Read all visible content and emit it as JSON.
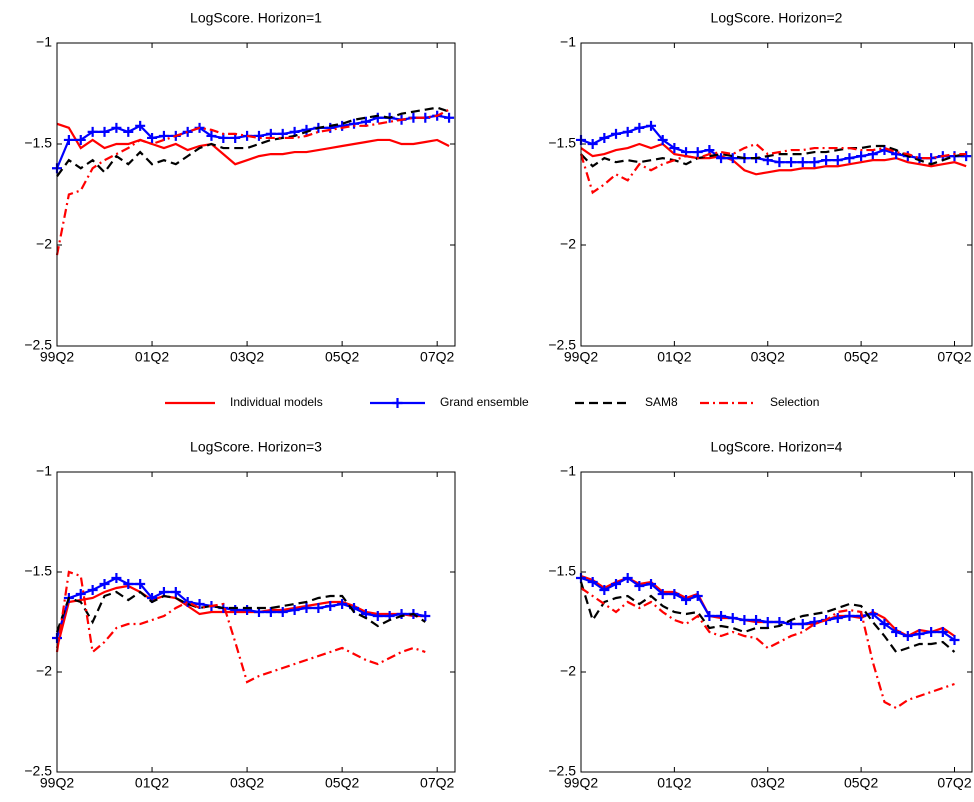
{
  "chart_data": [
    {
      "type": "line",
      "title": "LogScore. Horizon=1",
      "categories": [
        "99Q2",
        null,
        null,
        null,
        null,
        null,
        null,
        null,
        "01Q2",
        null,
        null,
        null,
        null,
        null,
        null,
        null,
        "03Q2",
        null,
        null,
        null,
        null,
        null,
        null,
        null,
        "05Q2",
        null,
        null,
        null,
        null,
        null,
        null,
        null,
        "07Q2",
        null
      ],
      "ylim": [
        -2.5,
        -1
      ],
      "yticks": [
        {
          "value": -2.5,
          "label": "−2.5"
        },
        {
          "value": -2,
          "label": "−2"
        },
        {
          "value": -1.5,
          "label": "−1.5"
        },
        {
          "value": -1,
          "label": "−1"
        }
      ],
      "legend": "below",
      "series": [
        {
          "name": "Individual models",
          "color": "#ff0000",
          "linestyle": "solid",
          "values": [
            -1.4,
            -1.42,
            -1.52,
            -1.48,
            -1.52,
            -1.5,
            -1.5,
            -1.48,
            -1.5,
            -1.52,
            -1.5,
            -1.53,
            -1.51,
            -1.5,
            -1.55,
            -1.6,
            -1.58,
            -1.56,
            -1.55,
            -1.55,
            -1.54,
            -1.54,
            -1.53,
            -1.52,
            -1.51,
            -1.5,
            -1.49,
            -1.48,
            -1.48,
            -1.5,
            -1.5,
            -1.49,
            -1.48,
            -1.51
          ]
        },
        {
          "name": "Grand ensemble",
          "color": "#0000ff",
          "linestyle": "solid",
          "marker": "+",
          "values": [
            -1.62,
            -1.48,
            -1.48,
            -1.44,
            -1.44,
            -1.42,
            -1.44,
            -1.41,
            -1.47,
            -1.46,
            -1.46,
            -1.44,
            -1.42,
            -1.46,
            -1.47,
            -1.47,
            -1.46,
            -1.46,
            -1.45,
            -1.45,
            -1.44,
            -1.43,
            -1.42,
            -1.42,
            -1.41,
            -1.4,
            -1.39,
            -1.37,
            -1.37,
            -1.38,
            -1.37,
            -1.37,
            -1.36,
            -1.37
          ]
        },
        {
          "name": "SAM8",
          "color": "#000000",
          "linestyle": "dashed",
          "values": [
            -1.66,
            -1.58,
            -1.62,
            -1.58,
            -1.64,
            -1.56,
            -1.6,
            -1.54,
            -1.6,
            -1.58,
            -1.6,
            -1.56,
            -1.52,
            -1.5,
            -1.52,
            -1.52,
            -1.52,
            -1.5,
            -1.48,
            -1.47,
            -1.46,
            -1.44,
            -1.42,
            -1.41,
            -1.4,
            -1.38,
            -1.37,
            -1.36,
            -1.37,
            -1.35,
            -1.34,
            -1.33,
            -1.32,
            -1.34
          ]
        },
        {
          "name": "Selection",
          "color": "#ff0000",
          "linestyle": "dashdot",
          "values": [
            -2.05,
            -1.75,
            -1.73,
            -1.62,
            -1.58,
            -1.55,
            -1.52,
            -1.48,
            -1.5,
            -1.48,
            -1.46,
            -1.44,
            -1.42,
            -1.43,
            -1.45,
            -1.45,
            -1.46,
            -1.47,
            -1.47,
            -1.47,
            -1.47,
            -1.46,
            -1.44,
            -1.43,
            -1.42,
            -1.41,
            -1.41,
            -1.4,
            -1.39,
            -1.38,
            -1.37,
            -1.37,
            -1.36,
            -1.33
          ]
        }
      ]
    },
    {
      "type": "line",
      "title": "LogScore. Horizon=2",
      "categories": [
        "99Q2",
        null,
        null,
        null,
        null,
        null,
        null,
        null,
        "01Q2",
        null,
        null,
        null,
        null,
        null,
        null,
        null,
        "03Q2",
        null,
        null,
        null,
        null,
        null,
        null,
        null,
        "05Q2",
        null,
        null,
        null,
        null,
        null,
        null,
        null,
        "07Q2",
        null
      ],
      "ylim": [
        -2.5,
        -1
      ],
      "yticks": [
        {
          "value": -2.5,
          "label": "−2.5"
        },
        {
          "value": -2,
          "label": "−2"
        },
        {
          "value": -1.5,
          "label": "−1.5"
        },
        {
          "value": -1,
          "label": "−1"
        }
      ],
      "series": [
        {
          "color": "#ff0000",
          "linestyle": "solid",
          "values": [
            -1.52,
            -1.56,
            -1.55,
            -1.53,
            -1.52,
            -1.5,
            -1.52,
            -1.5,
            -1.55,
            -1.56,
            -1.57,
            -1.57,
            -1.56,
            -1.58,
            -1.63,
            -1.65,
            -1.64,
            -1.63,
            -1.63,
            -1.62,
            -1.62,
            -1.61,
            -1.61,
            -1.6,
            -1.59,
            -1.58,
            -1.58,
            -1.57,
            -1.59,
            -1.6,
            -1.61,
            -1.6,
            -1.59,
            -1.61
          ]
        },
        {
          "color": "#0000ff",
          "linestyle": "solid",
          "marker": "+",
          "values": [
            -1.48,
            -1.5,
            -1.47,
            -1.45,
            -1.44,
            -1.42,
            -1.41,
            -1.48,
            -1.52,
            -1.54,
            -1.54,
            -1.53,
            -1.57,
            -1.57,
            -1.57,
            -1.57,
            -1.58,
            -1.59,
            -1.59,
            -1.59,
            -1.59,
            -1.58,
            -1.58,
            -1.57,
            -1.56,
            -1.55,
            -1.53,
            -1.55,
            -1.56,
            -1.57,
            -1.57,
            -1.56,
            -1.56,
            -1.56
          ]
        },
        {
          "color": "#000000",
          "linestyle": "dashed",
          "values": [
            -1.55,
            -1.61,
            -1.57,
            -1.59,
            -1.58,
            -1.59,
            -1.58,
            -1.57,
            -1.58,
            -1.6,
            -1.57,
            -1.56,
            -1.55,
            -1.56,
            -1.57,
            -1.57,
            -1.56,
            -1.55,
            -1.55,
            -1.55,
            -1.54,
            -1.54,
            -1.53,
            -1.52,
            -1.52,
            -1.51,
            -1.51,
            -1.53,
            -1.56,
            -1.58,
            -1.6,
            -1.58,
            -1.56,
            -1.55
          ]
        },
        {
          "color": "#ff0000",
          "linestyle": "dashdot",
          "values": [
            -1.55,
            -1.74,
            -1.7,
            -1.65,
            -1.68,
            -1.6,
            -1.63,
            -1.6,
            -1.58,
            -1.56,
            -1.57,
            -1.55,
            -1.54,
            -1.55,
            -1.52,
            -1.5,
            -1.55,
            -1.54,
            -1.53,
            -1.53,
            -1.52,
            -1.52,
            -1.52,
            -1.52,
            -1.53,
            -1.53,
            -1.52,
            -1.54,
            -1.55,
            -1.57,
            -1.57,
            -1.56,
            -1.55,
            -1.55
          ]
        }
      ]
    },
    {
      "type": "line",
      "title": "LogScore. Horizon=3",
      "categories": [
        "99Q2",
        null,
        null,
        null,
        null,
        null,
        null,
        null,
        "01Q2",
        null,
        null,
        null,
        null,
        null,
        null,
        null,
        "03Q2",
        null,
        null,
        null,
        null,
        null,
        null,
        null,
        "05Q2",
        null,
        null,
        null,
        null,
        null,
        null,
        null,
        "07Q2",
        null
      ],
      "ylim": [
        -2.5,
        -1
      ],
      "yticks": [
        {
          "value": -2.5,
          "label": "−2.5"
        },
        {
          "value": -2,
          "label": "−2"
        },
        {
          "value": -1.5,
          "label": "−1.5"
        },
        {
          "value": -1,
          "label": "−1"
        }
      ],
      "series": [
        {
          "color": "#ff0000",
          "linestyle": "solid",
          "values": [
            -1.88,
            -1.65,
            -1.64,
            -1.63,
            -1.6,
            -1.58,
            -1.57,
            -1.6,
            -1.64,
            -1.62,
            -1.63,
            -1.67,
            -1.71,
            -1.7,
            -1.7,
            -1.7,
            -1.7,
            -1.7,
            -1.69,
            -1.69,
            -1.68,
            -1.67,
            -1.66,
            -1.65,
            -1.65,
            -1.67,
            -1.7,
            -1.71,
            -1.71,
            -1.71,
            -1.72,
            -1.72,
            null,
            null
          ]
        },
        {
          "color": "#0000ff",
          "linestyle": "solid",
          "marker": "+",
          "values": [
            -1.83,
            -1.63,
            -1.61,
            -1.59,
            -1.56,
            -1.53,
            -1.56,
            -1.56,
            -1.63,
            -1.6,
            -1.6,
            -1.65,
            -1.66,
            -1.67,
            -1.68,
            -1.69,
            -1.69,
            -1.7,
            -1.7,
            -1.7,
            -1.69,
            -1.68,
            -1.68,
            -1.67,
            -1.66,
            -1.68,
            -1.71,
            -1.72,
            -1.72,
            -1.71,
            -1.71,
            -1.72,
            null,
            null
          ]
        },
        {
          "color": "#000000",
          "linestyle": "dashed",
          "values": [
            -1.8,
            -1.63,
            -1.65,
            -1.75,
            -1.62,
            -1.6,
            -1.64,
            -1.6,
            -1.65,
            -1.62,
            -1.63,
            -1.66,
            -1.68,
            -1.67,
            -1.68,
            -1.68,
            -1.68,
            -1.68,
            -1.68,
            -1.67,
            -1.66,
            -1.65,
            -1.63,
            -1.62,
            -1.62,
            -1.7,
            -1.73,
            -1.77,
            -1.74,
            -1.72,
            -1.71,
            -1.75,
            null,
            null
          ]
        },
        {
          "color": "#ff0000",
          "linestyle": "dashdot",
          "values": [
            -1.9,
            -1.5,
            -1.52,
            -1.9,
            -1.85,
            -1.78,
            -1.76,
            -1.76,
            -1.74,
            -1.72,
            -1.68,
            -1.65,
            -1.68,
            -1.67,
            -1.66,
            -1.85,
            -2.05,
            -2.02,
            -2.0,
            -1.98,
            -1.96,
            -1.94,
            -1.92,
            -1.9,
            -1.88,
            -1.91,
            -1.94,
            -1.96,
            -1.93,
            -1.9,
            -1.88,
            -1.9,
            null,
            null
          ]
        }
      ]
    },
    {
      "type": "line",
      "title": "LogScore. Horizon=4",
      "categories": [
        "99Q2",
        null,
        null,
        null,
        null,
        null,
        null,
        null,
        "01Q2",
        null,
        null,
        null,
        null,
        null,
        null,
        null,
        "03Q2",
        null,
        null,
        null,
        null,
        null,
        null,
        null,
        "05Q2",
        null,
        null,
        null,
        null,
        null,
        null,
        null,
        "07Q2",
        null
      ],
      "ylim": [
        -2.5,
        -1
      ],
      "yticks": [
        {
          "value": -2.5,
          "label": "−2.5"
        },
        {
          "value": -2,
          "label": "−2"
        },
        {
          "value": -1.5,
          "label": "−1.5"
        },
        {
          "value": -1,
          "label": "−1"
        }
      ],
      "series": [
        {
          "color": "#ff0000",
          "linestyle": "solid",
          "values": [
            -1.52,
            -1.54,
            -1.58,
            -1.55,
            -1.53,
            -1.56,
            -1.55,
            -1.6,
            -1.6,
            -1.63,
            -1.61,
            -1.72,
            -1.73,
            -1.73,
            -1.74,
            -1.75,
            -1.75,
            -1.75,
            -1.76,
            -1.76,
            -1.76,
            -1.74,
            -1.72,
            -1.72,
            -1.73,
            -1.7,
            -1.73,
            -1.79,
            -1.82,
            -1.79,
            -1.8,
            -1.78,
            -1.82,
            null
          ]
        },
        {
          "color": "#0000ff",
          "linestyle": "solid",
          "marker": "+",
          "values": [
            -1.53,
            -1.55,
            -1.59,
            -1.56,
            -1.53,
            -1.57,
            -1.56,
            -1.61,
            -1.61,
            -1.64,
            -1.62,
            -1.72,
            -1.72,
            -1.73,
            -1.74,
            -1.74,
            -1.75,
            -1.75,
            -1.76,
            -1.76,
            -1.75,
            -1.74,
            -1.73,
            -1.72,
            -1.72,
            -1.71,
            -1.76,
            -1.8,
            -1.82,
            -1.81,
            -1.8,
            -1.8,
            -1.84,
            null
          ]
        },
        {
          "color": "#000000",
          "linestyle": "dashed",
          "values": [
            -1.55,
            -1.74,
            -1.65,
            -1.63,
            -1.62,
            -1.66,
            -1.62,
            -1.67,
            -1.7,
            -1.71,
            -1.7,
            -1.78,
            -1.77,
            -1.78,
            -1.8,
            -1.78,
            -1.78,
            -1.77,
            -1.74,
            -1.72,
            -1.71,
            -1.7,
            -1.68,
            -1.66,
            -1.67,
            -1.75,
            -1.82,
            -1.9,
            -1.88,
            -1.86,
            -1.86,
            -1.85,
            -1.9,
            null
          ]
        },
        {
          "color": "#ff0000",
          "linestyle": "dashdot",
          "values": [
            -1.58,
            -1.62,
            -1.66,
            -1.7,
            -1.65,
            -1.68,
            -1.65,
            -1.7,
            -1.74,
            -1.76,
            -1.72,
            -1.8,
            -1.82,
            -1.8,
            -1.82,
            -1.83,
            -1.88,
            -1.85,
            -1.82,
            -1.8,
            -1.76,
            -1.74,
            -1.7,
            -1.69,
            -1.7,
            -1.95,
            -2.15,
            -2.18,
            -2.14,
            -2.12,
            -2.1,
            -2.08,
            -2.06,
            null
          ]
        }
      ]
    }
  ]
}
